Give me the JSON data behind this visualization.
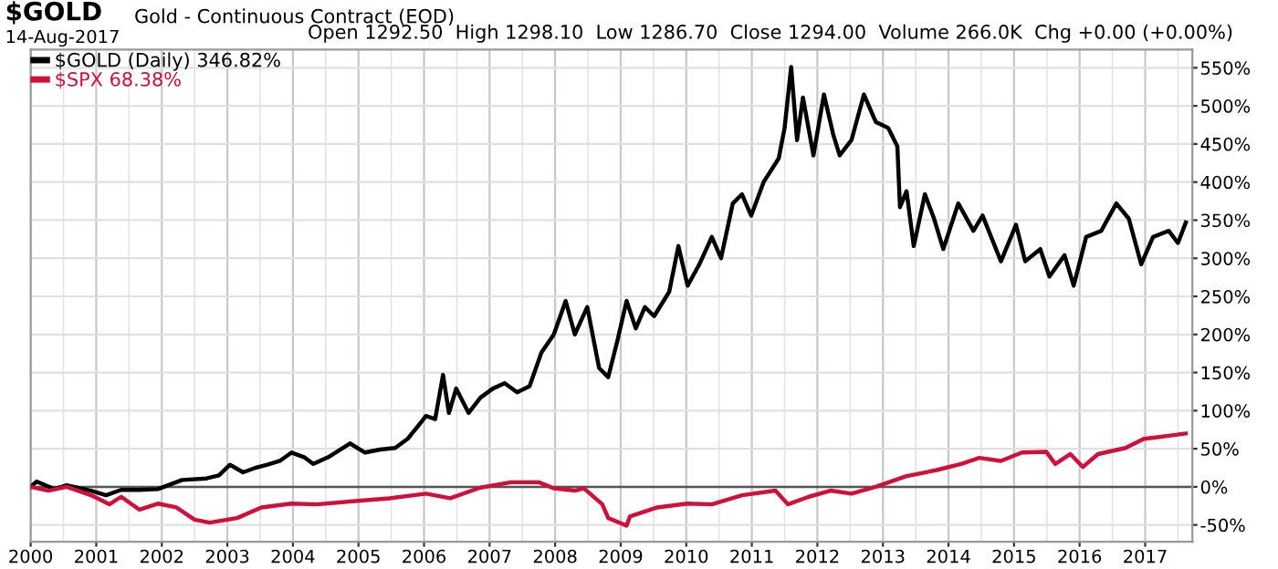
{
  "chart_data": {
    "type": "line",
    "title": "$GOLD",
    "subtitle": "Gold - Continuous Contract (EOD)",
    "annotations": [
      "14-Aug-2017",
      "Open 1292.50  High 1298.10  Low 1286.70  Close 1294.00  Volume 266.0K  Chg +0.00 (+0.00%)"
    ],
    "series": [
      {
        "name": "$GOLD (Daily) 346.82%",
        "color": "#000000",
        "x": [
          2000.0,
          2000.09,
          2000.36,
          2000.55,
          2000.92,
          2001.15,
          2001.38,
          2001.66,
          2001.94,
          2002.31,
          2002.68,
          2002.87,
          2003.04,
          2003.24,
          2003.43,
          2003.61,
          2003.8,
          2003.98,
          2004.17,
          2004.31,
          2004.54,
          2004.87,
          2005.1,
          2005.33,
          2005.56,
          2005.75,
          2005.93,
          2006.03,
          2006.17,
          2006.29,
          2006.38,
          2006.49,
          2006.68,
          2006.86,
          2007.05,
          2007.23,
          2007.42,
          2007.61,
          2007.79,
          2007.98,
          2008.16,
          2008.3,
          2008.49,
          2008.67,
          2008.81,
          2008.95,
          2009.09,
          2009.23,
          2009.37,
          2009.51,
          2009.74,
          2009.88,
          2010.02,
          2010.2,
          2010.39,
          2010.53,
          2010.71,
          2010.85,
          2010.99,
          2011.18,
          2011.41,
          2011.5,
          2011.6,
          2011.69,
          2011.78,
          2011.94,
          2012.1,
          2012.24,
          2012.34,
          2012.52,
          2012.71,
          2012.89,
          2013.08,
          2013.22,
          2013.26,
          2013.36,
          2013.47,
          2013.64,
          2013.78,
          2013.92,
          2014.15,
          2014.38,
          2014.52,
          2014.8,
          2015.03,
          2015.17,
          2015.4,
          2015.54,
          2015.77,
          2015.91,
          2016.1,
          2016.33,
          2016.56,
          2016.75,
          2016.94,
          2017.12,
          2017.36,
          2017.5,
          2017.62
        ],
        "values": [
          0,
          7,
          -3,
          2,
          -5,
          -11,
          -4,
          -4,
          -3,
          9,
          11,
          15,
          29,
          19,
          25,
          29,
          34,
          45,
          39,
          30,
          39,
          57,
          45,
          49,
          51,
          63,
          82,
          93,
          89,
          147,
          97,
          129,
          97,
          117,
          129,
          136,
          124,
          132,
          176,
          200,
          244,
          200,
          236,
          156,
          144,
          192,
          244,
          208,
          236,
          224,
          256,
          316,
          264,
          292,
          328,
          300,
          372,
          384,
          356,
          400,
          431,
          471,
          551,
          455,
          511,
          435,
          515,
          463,
          435,
          455,
          515,
          479,
          471,
          447,
          367,
          388,
          316,
          384,
          352,
          312,
          372,
          336,
          356,
          296,
          344,
          296,
          312,
          276,
          304,
          264,
          328,
          336,
          372,
          352,
          292,
          328,
          336,
          320,
          347
        ]
      },
      {
        "name": "$SPX 68.38%",
        "color": "#d0103a",
        "x": [
          2000.0,
          2000.27,
          2000.55,
          2000.92,
          2001.2,
          2001.38,
          2001.66,
          2001.94,
          2002.22,
          2002.5,
          2002.73,
          2003.15,
          2003.52,
          2003.98,
          2004.36,
          2004.91,
          2005.47,
          2006.03,
          2006.4,
          2006.86,
          2007.33,
          2007.75,
          2007.98,
          2008.3,
          2008.44,
          2008.72,
          2008.81,
          2009.09,
          2009.14,
          2009.56,
          2010.02,
          2010.39,
          2010.85,
          2011.36,
          2011.55,
          2011.87,
          2012.2,
          2012.52,
          2012.89,
          2013.36,
          2013.82,
          2014.19,
          2014.47,
          2014.8,
          2015.12,
          2015.49,
          2015.63,
          2015.86,
          2016.05,
          2016.28,
          2016.7,
          2016.98,
          2017.36,
          2017.62
        ],
        "values": [
          0,
          -5,
          0,
          -11,
          -23,
          -13,
          -30,
          -22,
          -27,
          -43,
          -47,
          -41,
          -27,
          -22,
          -23,
          -19,
          -15,
          -9,
          -15,
          -1,
          6,
          6,
          -2,
          -5,
          -2,
          -23,
          -41,
          -51,
          -39,
          -27,
          -22,
          -23,
          -11,
          -5,
          -23,
          -13,
          -5,
          -9,
          0,
          14,
          22,
          30,
          38,
          34,
          45,
          46,
          30,
          43,
          26,
          43,
          51,
          63,
          67,
          70
        ]
      }
    ],
    "xlim": [
      2000.0,
      2017.72
    ],
    "xticks": [
      2000,
      2001,
      2002,
      2003,
      2004,
      2005,
      2006,
      2007,
      2008,
      2009,
      2010,
      2011,
      2012,
      2013,
      2014,
      2015,
      2016,
      2017
    ],
    "ylim": [
      -72,
      574
    ],
    "yticks": [
      {
        "value": -50,
        "label": "-50%"
      },
      {
        "value": 0,
        "label": "0%"
      },
      {
        "value": 50,
        "label": "50%"
      },
      {
        "value": 100,
        "label": "100%"
      },
      {
        "value": 150,
        "label": "150%"
      },
      {
        "value": 200,
        "label": "200%"
      },
      {
        "value": 250,
        "label": "250%"
      },
      {
        "value": 300,
        "label": "300%"
      },
      {
        "value": 350,
        "label": "350%"
      },
      {
        "value": 400,
        "label": "400%"
      },
      {
        "value": 450,
        "label": "450%"
      },
      {
        "value": 500,
        "label": "500%"
      },
      {
        "value": 550,
        "label": "550%"
      }
    ],
    "ref_lines": [
      {
        "axis": "y",
        "value": 0,
        "color": "#555555"
      }
    ],
    "grid": true,
    "legend": "top left",
    "line_style": "solid",
    "marker": "none"
  }
}
